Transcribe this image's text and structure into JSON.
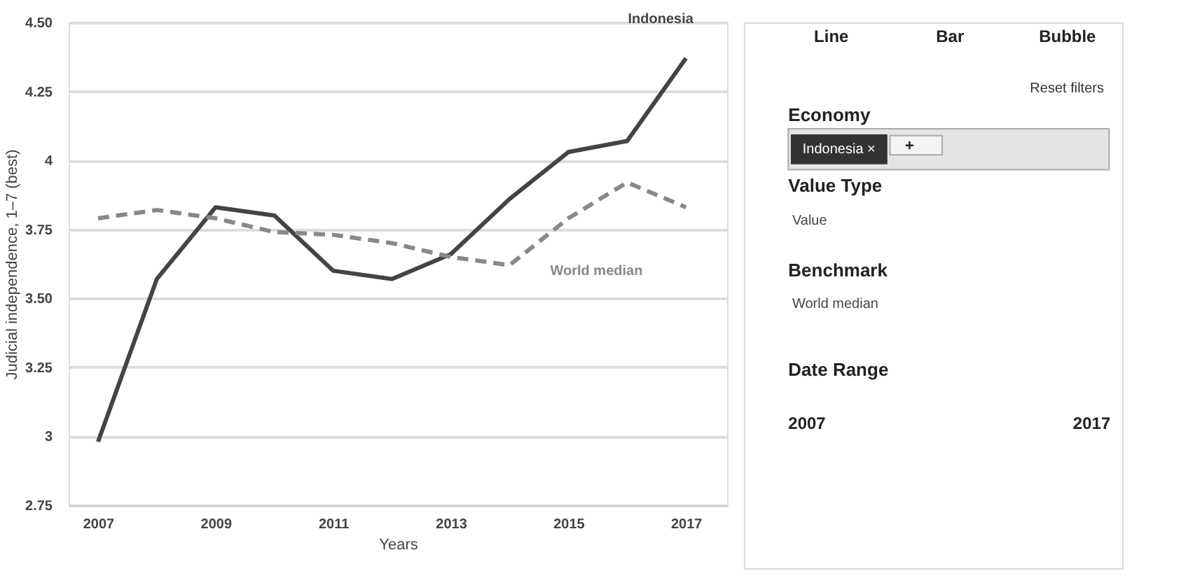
{
  "chart_data": [
    {
      "type": "line",
      "xlabel": "Years",
      "ylabel": "Judicial independence, 1–7 (best)",
      "x": [
        2007,
        2008,
        2009,
        2010,
        2011,
        2012,
        2013,
        2014,
        2015,
        2016,
        2017
      ],
      "series": [
        {
          "name": "Indonesia",
          "color": "#444444",
          "line_style": "solid",
          "values": [
            2.98,
            3.57,
            3.83,
            3.8,
            3.6,
            3.57,
            3.66,
            3.86,
            4.03,
            4.07,
            4.37
          ]
        },
        {
          "name": "World median",
          "color": "#888888",
          "line_style": "dashed",
          "values": [
            3.79,
            3.82,
            3.79,
            3.74,
            3.73,
            3.7,
            3.65,
            3.62,
            3.79,
            3.92,
            3.83
          ]
        }
      ],
      "xlim": [
        2006.5,
        2017.7
      ],
      "xticks": [
        2007,
        2009,
        2011,
        2013,
        2015,
        2017
      ],
      "ylim": [
        2.75,
        4.5
      ],
      "yticks": [
        2.75,
        {
          "value": 3,
          "label": "3"
        },
        3.25,
        {
          "value": 3.5,
          "label": "3.50"
        },
        3.75,
        {
          "value": 4,
          "label": "4"
        },
        4.25,
        {
          "value": 4.5,
          "label": "4.50"
        }
      ],
      "grid": "y",
      "legend": false
    },
    {
      "type": "other",
      "annotations": [
        "Line",
        "Bar",
        "Bubble",
        "Reset filters",
        "Economy",
        "Indonesia ×",
        "+",
        "Value Type",
        "Value",
        "Benchmark",
        "World median",
        "Date Range",
        "2007",
        "2017"
      ]
    }
  ]
}
